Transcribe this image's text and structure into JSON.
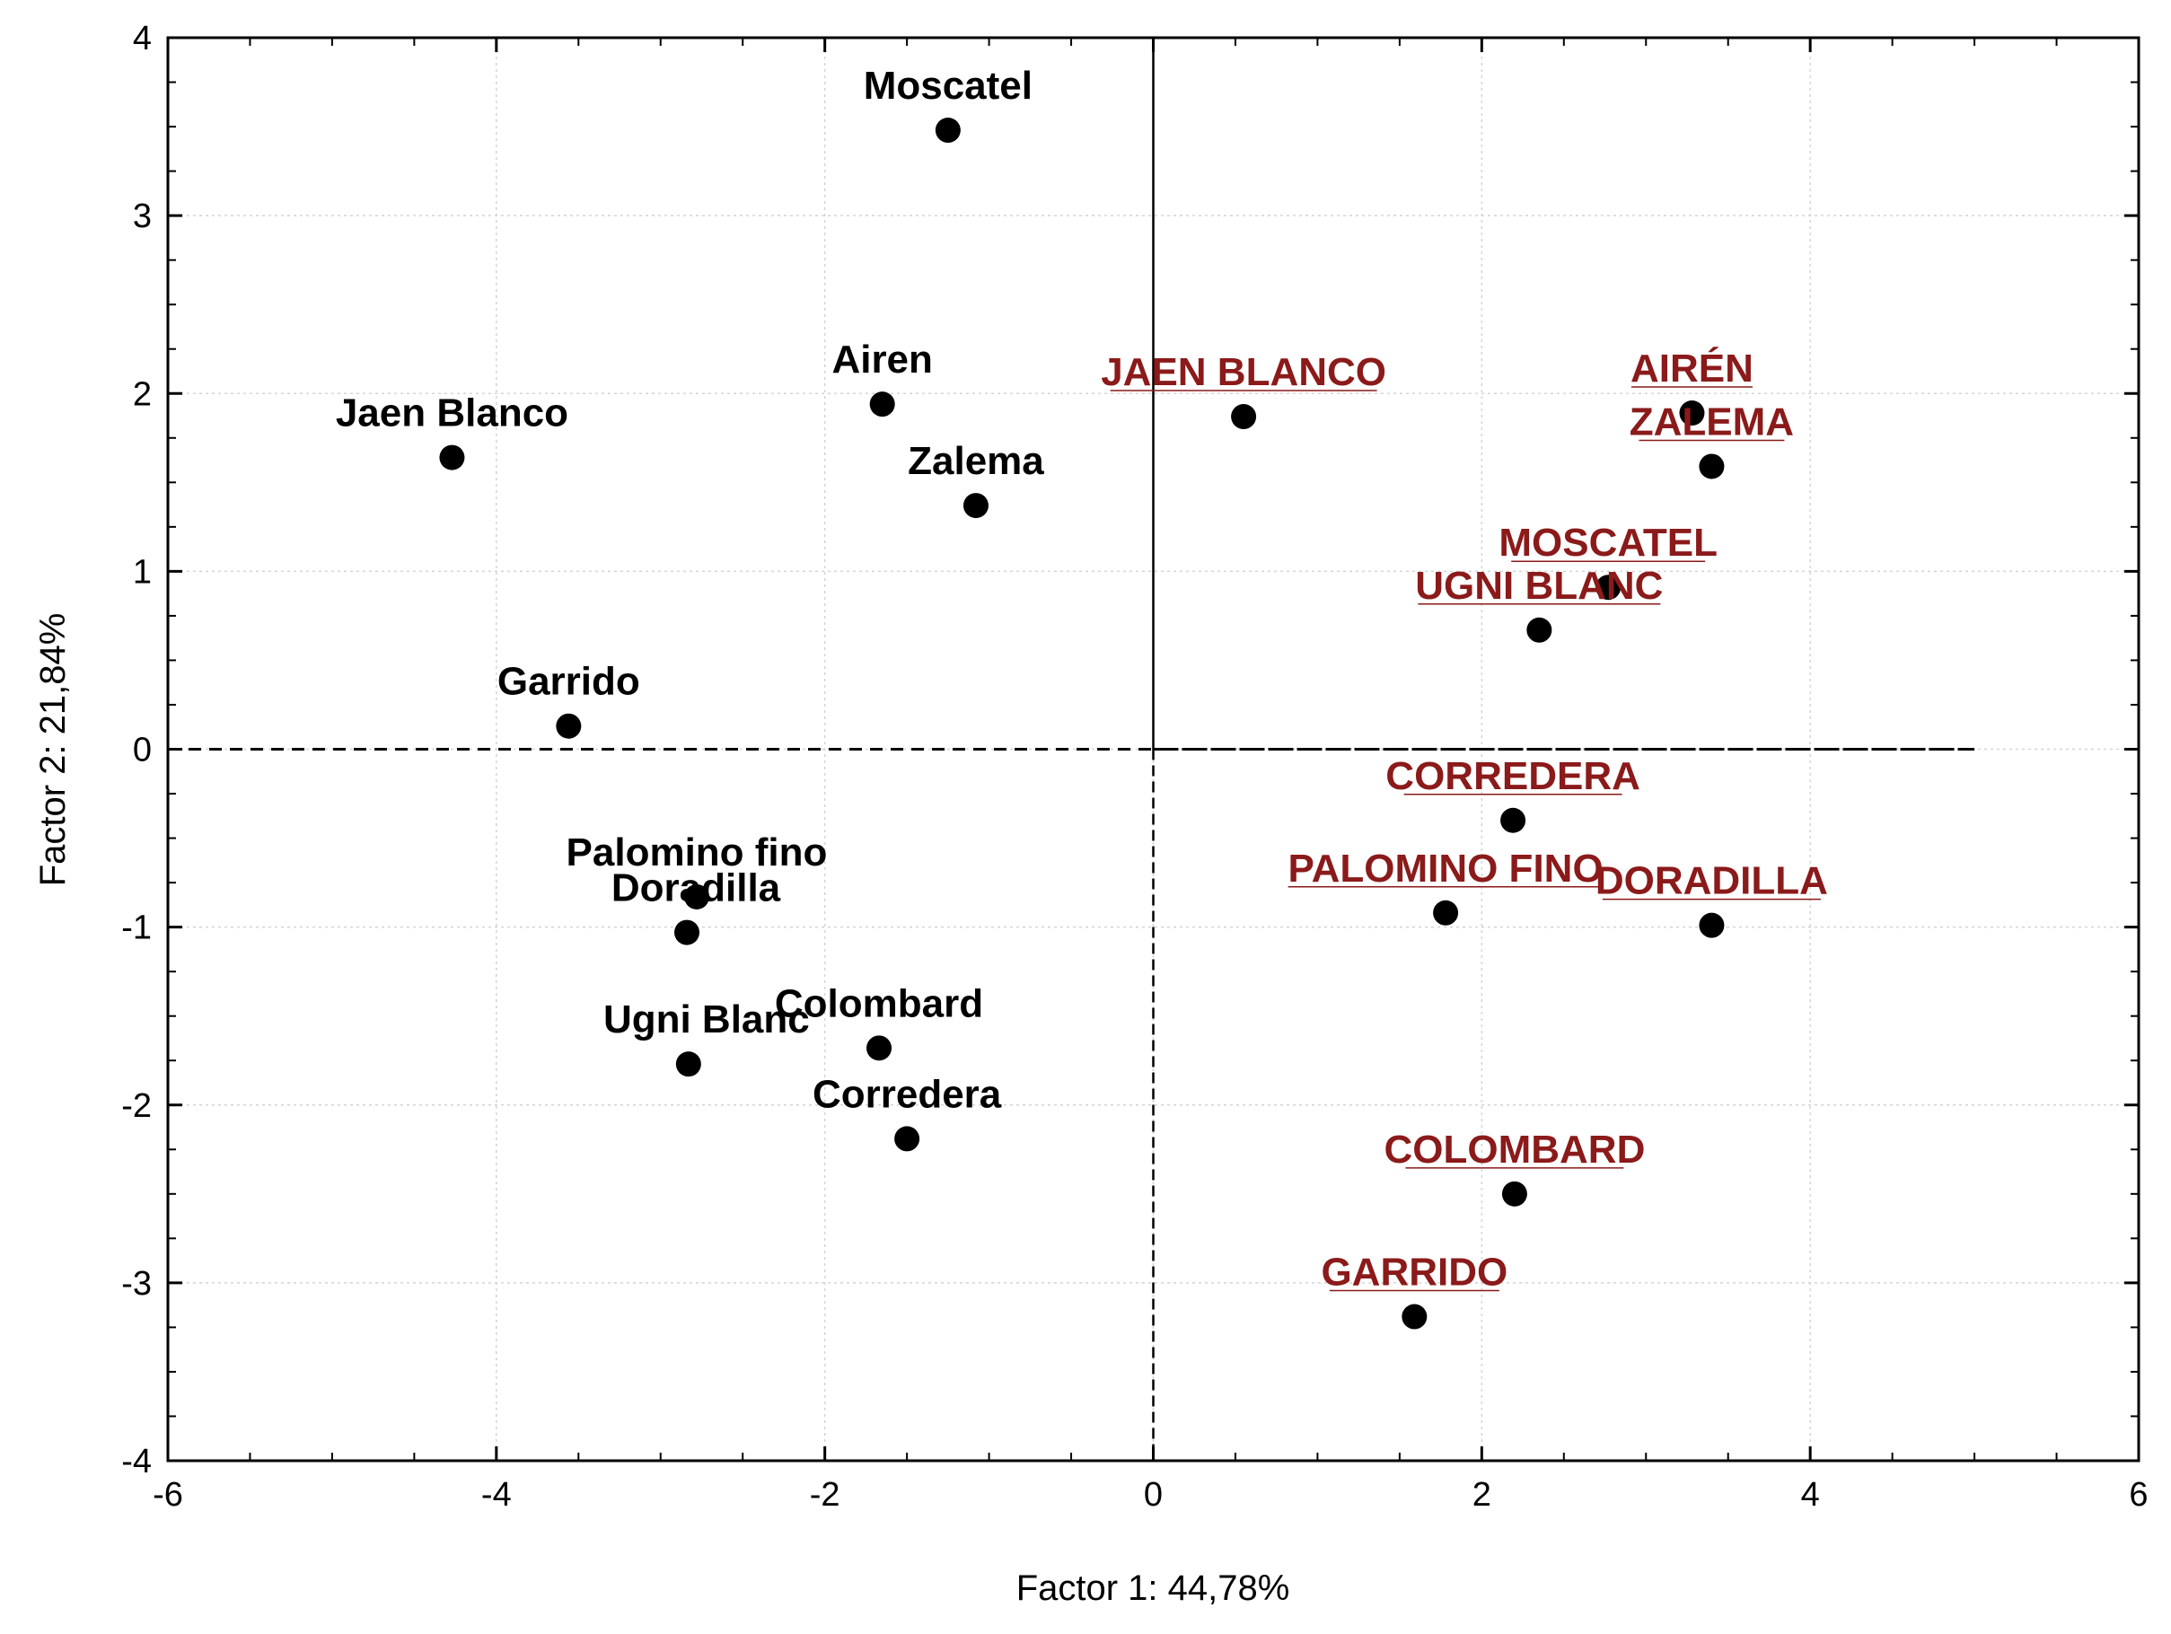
{
  "chart_data": {
    "type": "scatter",
    "title": "",
    "xlabel": "Factor 1: 44,78%",
    "ylabel": "Factor 2: 21,84%",
    "xlim": [
      -6,
      6
    ],
    "ylim": [
      -4,
      4
    ],
    "x_ticks": [
      "-6",
      "-4",
      "-2",
      "0",
      "2",
      "4",
      "6"
    ],
    "y_ticks": [
      "4",
      "3",
      "2",
      "1",
      "0",
      "-1",
      "-2",
      "-3",
      "-4"
    ],
    "grid": true,
    "series": [
      {
        "color": "#000000",
        "points": [
          {
            "label": "Moscatel",
            "x": -1.25,
            "y": 3.48
          },
          {
            "label": "Airen",
            "x": -1.65,
            "y": 1.94
          },
          {
            "label": "Jaen Blanco",
            "x": -4.27,
            "y": 1.64
          },
          {
            "label": "Zalema",
            "x": -1.08,
            "y": 1.37
          },
          {
            "label": "Garrido",
            "x": -3.56,
            "y": 0.13
          },
          {
            "label": "Palomino fino",
            "x": -2.78,
            "y": -0.83
          },
          {
            "label": "Doradilla",
            "x": -2.84,
            "y": -1.03
          },
          {
            "label": "Colombard",
            "x": -1.67,
            "y": -1.68
          },
          {
            "label": "Ugni Blanc",
            "x": -2.83,
            "y": -1.77
          },
          {
            "label": "Corredera",
            "x": -1.5,
            "y": -2.19
          }
        ]
      },
      {
        "color": "#8b1a1a",
        "points": [
          {
            "label": "JAEN BLANCO",
            "x": 0.55,
            "y": 1.87
          },
          {
            "label": "AIRÉN",
            "x": 3.28,
            "y": 1.89
          },
          {
            "label": "ZALEMA",
            "x": 3.4,
            "y": 1.59
          },
          {
            "label": "MOSCATEL",
            "x": 2.77,
            "y": 0.91
          },
          {
            "label": "UGNI BLANC",
            "x": 2.35,
            "y": 0.67
          },
          {
            "label": "CORREDERA",
            "x": 2.19,
            "y": -0.4
          },
          {
            "label": "PALOMINO FINO",
            "x": 1.78,
            "y": -0.92
          },
          {
            "label": "DORADILLA",
            "x": 3.4,
            "y": -0.99
          },
          {
            "label": "COLOMBARD",
            "x": 2.2,
            "y": -2.5
          },
          {
            "label": "GARRIDO",
            "x": 1.59,
            "y": -3.19
          }
        ]
      }
    ]
  }
}
